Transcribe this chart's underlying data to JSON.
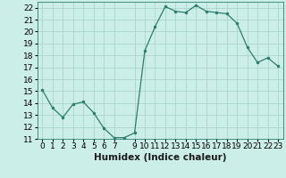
{
  "x": [
    0,
    1,
    2,
    3,
    4,
    5,
    6,
    7,
    8,
    9,
    10,
    11,
    12,
    13,
    14,
    15,
    16,
    17,
    18,
    19,
    20,
    21,
    22,
    23
  ],
  "y": [
    15.1,
    13.6,
    12.8,
    13.9,
    14.1,
    13.2,
    11.9,
    11.1,
    11.1,
    11.5,
    18.4,
    20.4,
    22.1,
    21.7,
    21.6,
    22.2,
    21.7,
    21.6,
    21.5,
    20.7,
    18.7,
    17.4,
    17.8,
    17.1
  ],
  "xlabel": "Humidex (Indice chaleur)",
  "xlim": [
    -0.5,
    23.5
  ],
  "ylim": [
    11,
    22.5
  ],
  "yticks": [
    11,
    12,
    13,
    14,
    15,
    16,
    17,
    18,
    19,
    20,
    21,
    22
  ],
  "xtick_positions": [
    0,
    1,
    2,
    3,
    4,
    5,
    6,
    7,
    9,
    10,
    11,
    12,
    13,
    14,
    15,
    16,
    17,
    18,
    19,
    20,
    21,
    22,
    23
  ],
  "line_color": "#2d7d6e",
  "marker_size": 3,
  "bg_color": "#cceee8",
  "grid_color": "#aad4cc",
  "tick_fontsize": 6.5,
  "label_fontsize": 7.5
}
